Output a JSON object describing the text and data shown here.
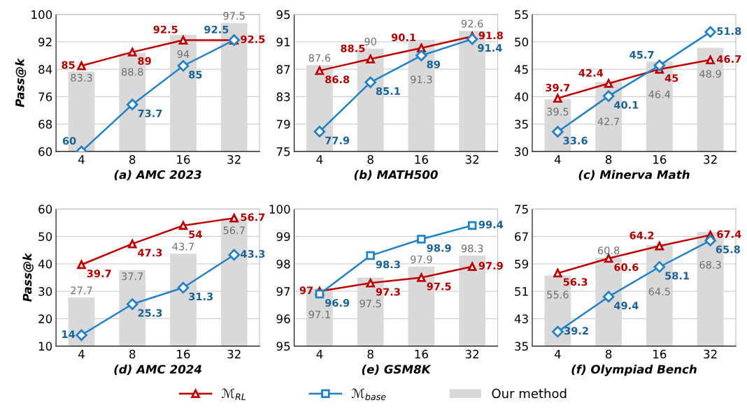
{
  "chart_data": [
    {
      "type": "bar",
      "xlabel": "(a) AMC 2023",
      "ylabel": "Pass@k",
      "categories": [
        "4",
        "8",
        "16",
        "32"
      ],
      "ylim": [
        60,
        100
      ],
      "yticks": [
        60,
        68,
        76,
        84,
        92,
        100
      ],
      "grid": "y",
      "data_labels": true,
      "series": [
        {
          "color": "#d9d9d9",
          "values": [
            83.3,
            88.8,
            94,
            97.5
          ]
        },
        {
          "type": "line",
          "marker": "triangle",
          "color": "#c00000",
          "values": [
            85,
            89,
            92.5,
            92.5
          ]
        },
        {
          "type": "line",
          "marker": "diamond",
          "color": "#1f82c8",
          "values": [
            60,
            73.7,
            85,
            92.5
          ]
        }
      ]
    },
    {
      "type": "bar",
      "xlabel": "(b) MATH500",
      "categories": [
        "4",
        "8",
        "16",
        "32"
      ],
      "ylim": [
        75,
        95
      ],
      "yticks": [
        75,
        79,
        83,
        87,
        91,
        95
      ],
      "grid": "y",
      "data_labels": true,
      "series": [
        {
          "color": "#d9d9d9",
          "values": [
            87.6,
            90,
            91.3,
            92.6
          ]
        },
        {
          "type": "line",
          "marker": "triangle",
          "color": "#c00000",
          "values": [
            86.8,
            88.5,
            90.1,
            91.8
          ]
        },
        {
          "type": "line",
          "marker": "diamond",
          "color": "#1f82c8",
          "values": [
            77.9,
            85.1,
            89,
            91.4
          ]
        }
      ]
    },
    {
      "type": "bar",
      "xlabel": "(c) Minerva Math",
      "categories": [
        "4",
        "8",
        "16",
        "32"
      ],
      "ylim": [
        30,
        55
      ],
      "yticks": [
        30,
        35,
        40,
        45,
        50,
        55
      ],
      "grid": "y",
      "data_labels": true,
      "series": [
        {
          "color": "#d9d9d9",
          "values": [
            39.5,
            42.7,
            46.4,
            48.9
          ]
        },
        {
          "type": "line",
          "marker": "triangle",
          "color": "#c00000",
          "values": [
            39.7,
            42.4,
            45,
            46.7
          ]
        },
        {
          "type": "line",
          "marker": "diamond",
          "color": "#1f82c8",
          "values": [
            33.6,
            40.1,
            45.7,
            51.8
          ]
        }
      ]
    },
    {
      "type": "bar",
      "xlabel": "(d) AMC 2024",
      "ylabel": "Pass@k",
      "categories": [
        "4",
        "8",
        "16",
        "32"
      ],
      "ylim": [
        10,
        60
      ],
      "yticks": [
        10,
        20,
        30,
        40,
        50,
        60
      ],
      "grid": "y",
      "data_labels": true,
      "series": [
        {
          "color": "#d9d9d9",
          "values": [
            27.7,
            37.7,
            43.7,
            56.7
          ]
        },
        {
          "type": "line",
          "marker": "triangle",
          "color": "#c00000",
          "values": [
            39.7,
            47.3,
            54,
            56.7
          ]
        },
        {
          "type": "line",
          "marker": "diamond",
          "color": "#1f82c8",
          "values": [
            14,
            25.3,
            31.3,
            43.3
          ]
        }
      ]
    },
    {
      "type": "bar",
      "xlabel": "(e) GSM8K",
      "categories": [
        "4",
        "8",
        "16",
        "32"
      ],
      "ylim": [
        95,
        100
      ],
      "yticks": [
        95,
        96,
        97,
        98,
        99,
        100
      ],
      "grid": "y",
      "data_labels": true,
      "legend": "bottom",
      "series": [
        {
          "type": "line",
          "marker": "triangle",
          "name": "ℳ$_{RL}$",
          "color": "#c00000",
          "values": [
            97,
            97.3,
            97.5,
            97.9
          ]
        },
        {
          "type": "line",
          "marker": "square",
          "name": "ℳ$_{base}$",
          "color": "#1f82c8",
          "values": [
            96.9,
            98.3,
            98.9,
            99.4
          ]
        },
        {
          "name": "Our method",
          "color": "#d9d9d9",
          "values": [
            97.1,
            97.5,
            97.9,
            98.3
          ]
        }
      ]
    },
    {
      "type": "bar",
      "xlabel": "(f) Olympiad Bench",
      "categories": [
        "4",
        "8",
        "16",
        "32"
      ],
      "ylim": [
        35,
        75
      ],
      "yticks": [
        35,
        43,
        51,
        59,
        67,
        75
      ],
      "grid": "y",
      "data_labels": true,
      "series": [
        {
          "color": "#d9d9d9",
          "values": [
            55.6,
            60.8,
            64.5,
            68.3
          ]
        },
        {
          "type": "line",
          "marker": "triangle",
          "color": "#c00000",
          "values": [
            56.3,
            60.6,
            64.2,
            67.4
          ]
        },
        {
          "type": "line",
          "marker": "diamond",
          "color": "#1f82c8",
          "values": [
            39.2,
            49.4,
            58.1,
            65.8
          ]
        }
      ]
    }
  ]
}
